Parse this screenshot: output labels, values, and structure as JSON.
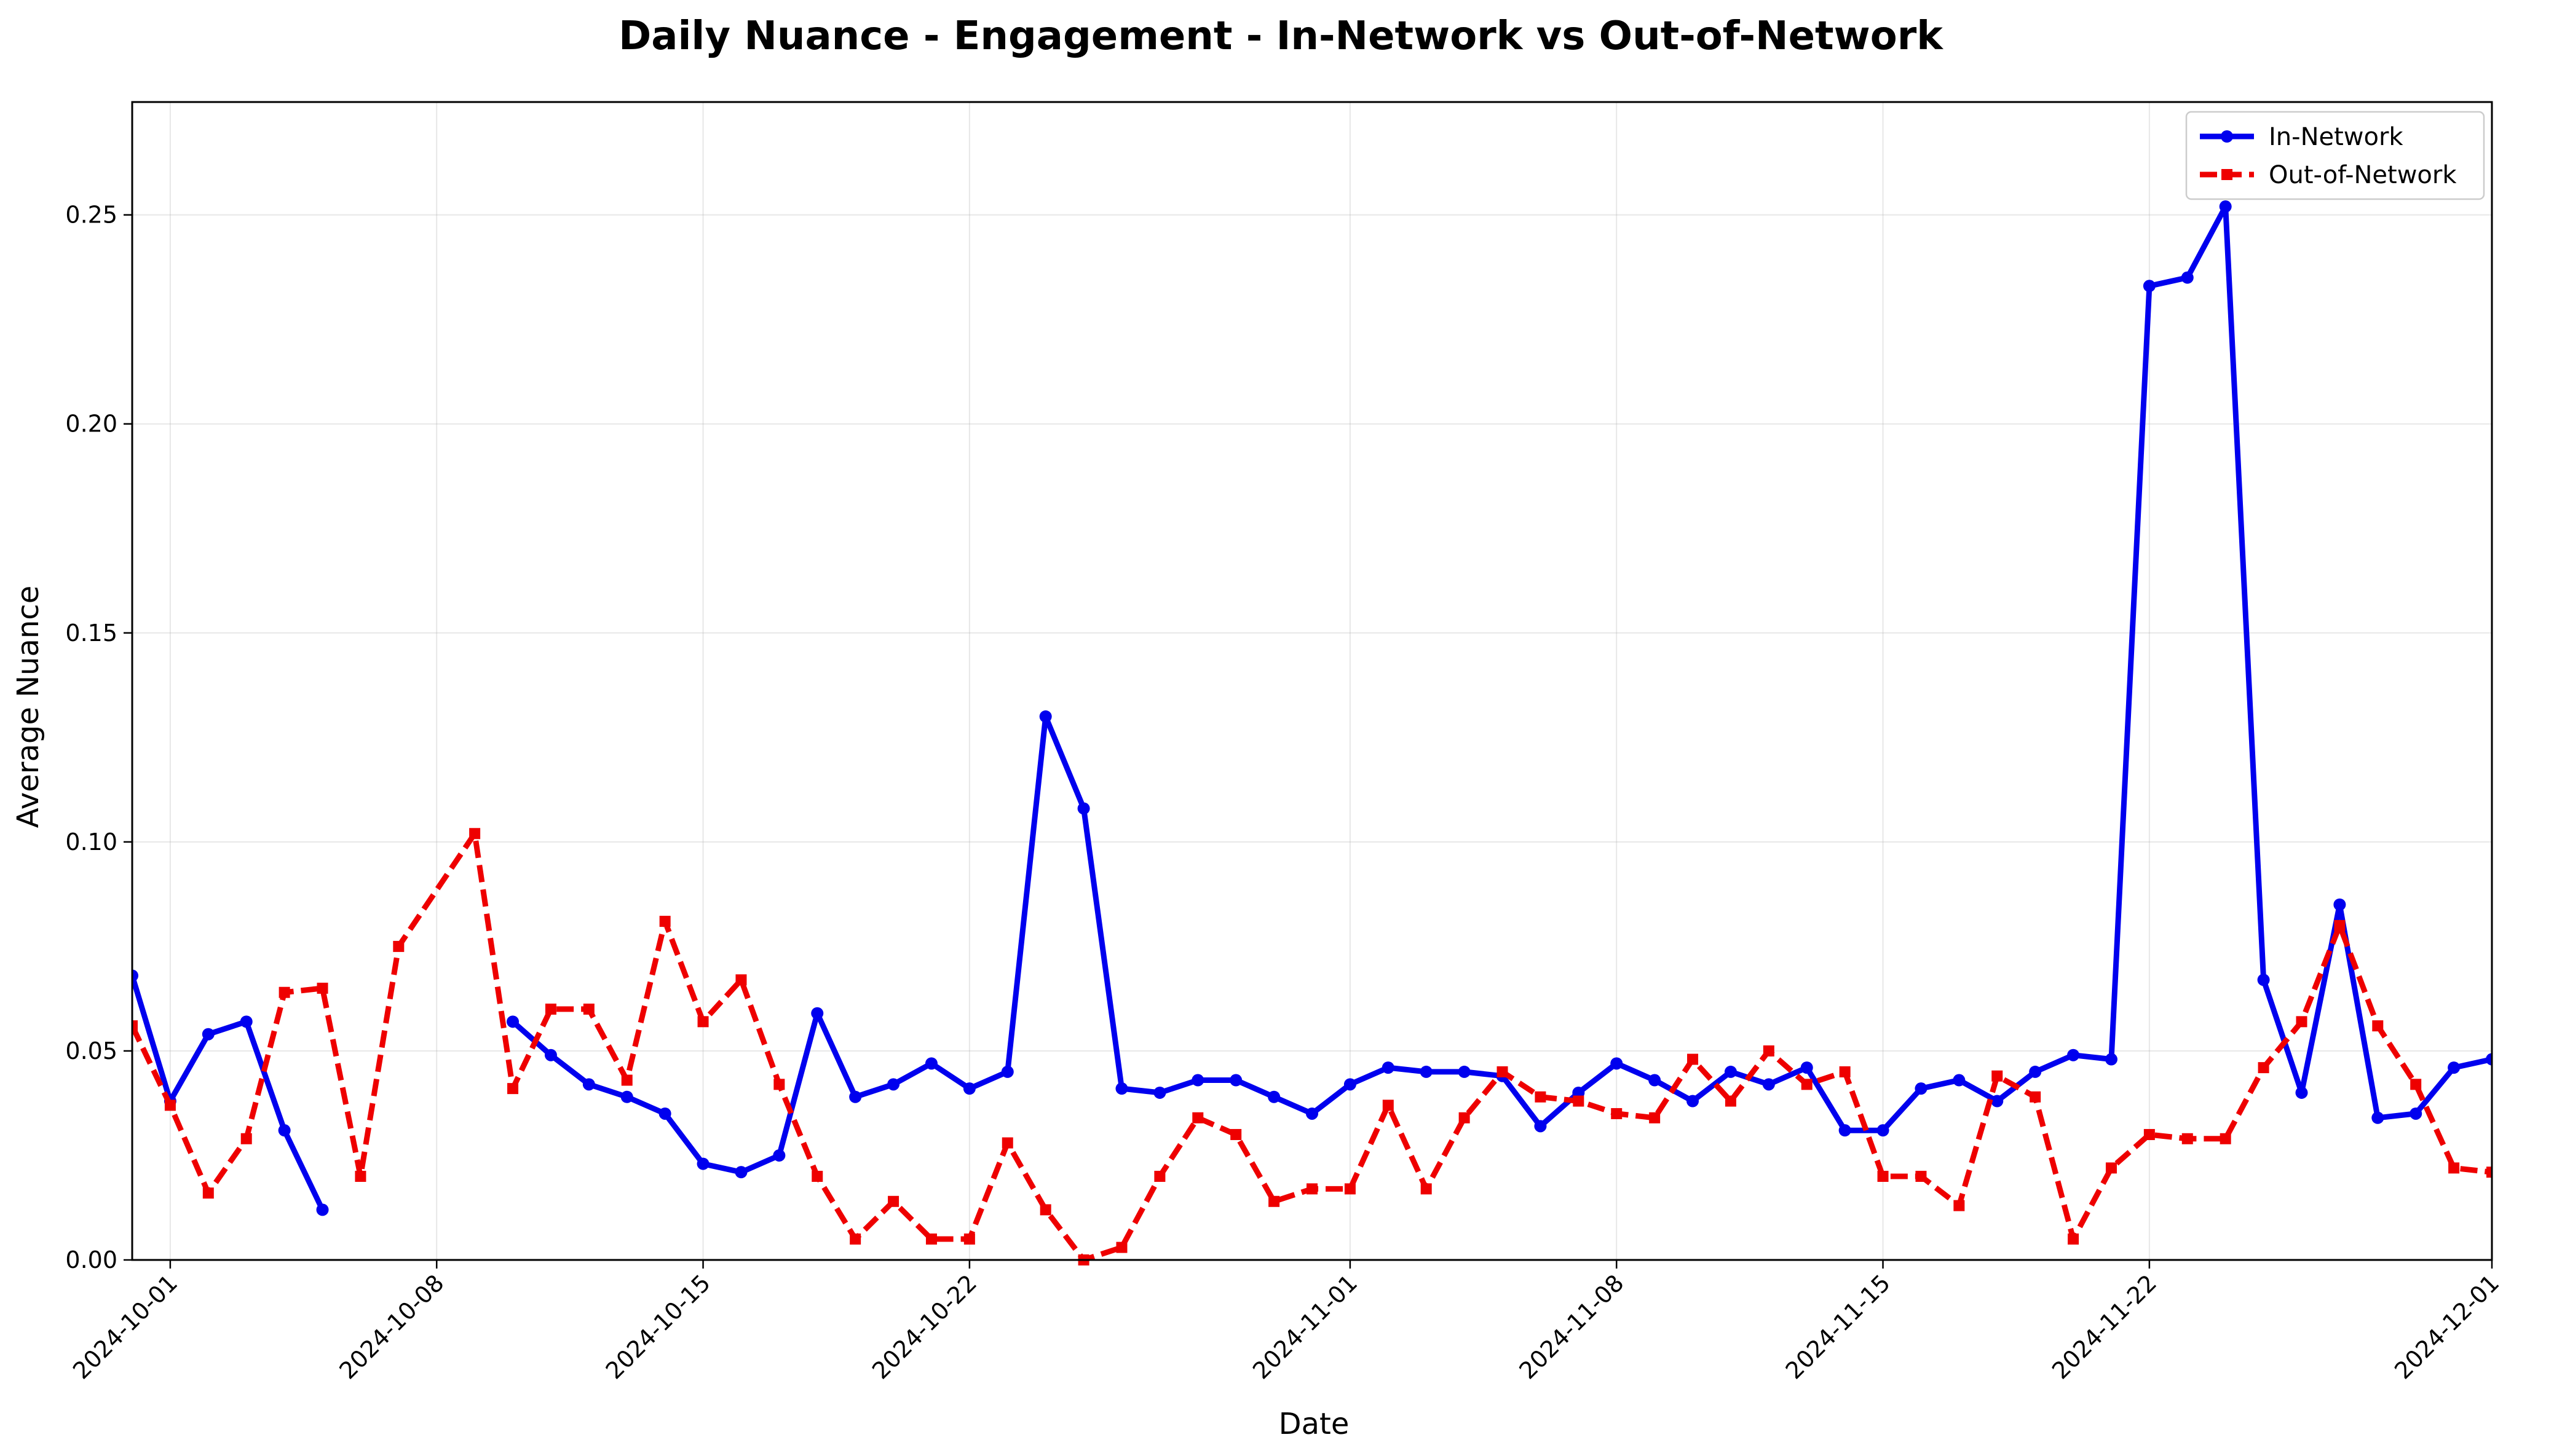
{
  "chart_data": {
    "type": "line",
    "title": "Daily Nuance - Engagement - In-Network vs Out-of-Network",
    "xlabel": "Date",
    "ylabel": "Average Nuance",
    "xlim": [
      "2024-09-30",
      "2024-12-01"
    ],
    "ylim": [
      0,
      0.277
    ],
    "x_ticks": [
      "2024-10-01",
      "2024-10-08",
      "2024-10-15",
      "2024-10-22",
      "2024-11-01",
      "2024-11-08",
      "2024-11-15",
      "2024-11-22",
      "2024-12-01"
    ],
    "y_ticks": [
      "0.00",
      "0.05",
      "0.10",
      "0.15",
      "0.20",
      "0.25"
    ],
    "grid": true,
    "legend_position": "top-right",
    "series": [
      {
        "name": "In-Network",
        "color": "#0000ee",
        "line_style": "solid",
        "marker": "circle",
        "points": [
          [
            "2024-09-30",
            0.068
          ],
          [
            "2024-10-01",
            0.038
          ],
          [
            "2024-10-02",
            0.054
          ],
          [
            "2024-10-03",
            0.057
          ],
          [
            "2024-10-04",
            0.031
          ],
          [
            "2024-10-05",
            0.012
          ],
          null,
          [
            "2024-10-10",
            0.057
          ],
          [
            "2024-10-11",
            0.049
          ],
          [
            "2024-10-12",
            0.042
          ],
          [
            "2024-10-13",
            0.039
          ],
          [
            "2024-10-14",
            0.035
          ],
          [
            "2024-10-15",
            0.023
          ],
          [
            "2024-10-16",
            0.021
          ],
          [
            "2024-10-17",
            0.025
          ],
          [
            "2024-10-18",
            0.059
          ],
          [
            "2024-10-19",
            0.039
          ],
          [
            "2024-10-20",
            0.042
          ],
          [
            "2024-10-21",
            0.047
          ],
          [
            "2024-10-22",
            0.041
          ],
          [
            "2024-10-23",
            0.045
          ],
          [
            "2024-10-24",
            0.13
          ],
          [
            "2024-10-25",
            0.108
          ],
          [
            "2024-10-26",
            0.041
          ],
          [
            "2024-10-27",
            0.04
          ],
          [
            "2024-10-28",
            0.043
          ],
          [
            "2024-10-29",
            0.043
          ],
          [
            "2024-10-30",
            0.039
          ],
          [
            "2024-10-31",
            0.035
          ],
          [
            "2024-11-01",
            0.042
          ],
          [
            "2024-11-02",
            0.046
          ],
          [
            "2024-11-03",
            0.045
          ],
          [
            "2024-11-04",
            0.045
          ],
          [
            "2024-11-05",
            0.044
          ],
          [
            "2024-11-06",
            0.032
          ],
          [
            "2024-11-07",
            0.04
          ],
          [
            "2024-11-08",
            0.047
          ],
          [
            "2024-11-09",
            0.043
          ],
          [
            "2024-11-10",
            0.038
          ],
          [
            "2024-11-11",
            0.045
          ],
          [
            "2024-11-12",
            0.042
          ],
          [
            "2024-11-13",
            0.046
          ],
          [
            "2024-11-14",
            0.031
          ],
          [
            "2024-11-15",
            0.031
          ],
          [
            "2024-11-16",
            0.041
          ],
          [
            "2024-11-17",
            0.043
          ],
          [
            "2024-11-18",
            0.038
          ],
          [
            "2024-11-19",
            0.045
          ],
          [
            "2024-11-20",
            0.049
          ],
          [
            "2024-11-21",
            0.048
          ],
          [
            "2024-11-22",
            0.233
          ],
          [
            "2024-11-23",
            0.235
          ],
          [
            "2024-11-24",
            0.252
          ],
          [
            "2024-11-25",
            0.067
          ],
          [
            "2024-11-26",
            0.04
          ],
          [
            "2024-11-27",
            0.085
          ],
          [
            "2024-11-28",
            0.034
          ],
          [
            "2024-11-29",
            0.035
          ],
          [
            "2024-11-30",
            0.046
          ],
          [
            "2024-12-01",
            0.048
          ]
        ]
      },
      {
        "name": "Out-of-Network",
        "color": "#ee0000",
        "line_style": "dashed",
        "marker": "square",
        "points": [
          [
            "2024-09-30",
            0.056
          ],
          [
            "2024-10-01",
            0.037
          ],
          [
            "2024-10-02",
            0.016
          ],
          [
            "2024-10-03",
            0.029
          ],
          [
            "2024-10-04",
            0.064
          ],
          [
            "2024-10-05",
            0.065
          ],
          [
            "2024-10-06",
            0.02
          ],
          [
            "2024-10-07",
            0.075
          ],
          [
            "2024-10-09",
            0.102
          ],
          [
            "2024-10-10",
            0.041
          ],
          [
            "2024-10-11",
            0.06
          ],
          [
            "2024-10-12",
            0.06
          ],
          [
            "2024-10-13",
            0.043
          ],
          [
            "2024-10-14",
            0.081
          ],
          [
            "2024-10-15",
            0.057
          ],
          [
            "2024-10-16",
            0.067
          ],
          [
            "2024-10-17",
            0.042
          ],
          [
            "2024-10-18",
            0.02
          ],
          [
            "2024-10-19",
            0.005
          ],
          [
            "2024-10-20",
            0.014
          ],
          [
            "2024-10-21",
            0.005
          ],
          [
            "2024-10-22",
            0.005
          ],
          [
            "2024-10-23",
            0.028
          ],
          [
            "2024-10-24",
            0.012
          ],
          [
            "2024-10-25",
            0.0
          ],
          [
            "2024-10-26",
            0.003
          ],
          [
            "2024-10-27",
            0.02
          ],
          [
            "2024-10-28",
            0.034
          ],
          [
            "2024-10-29",
            0.03
          ],
          [
            "2024-10-30",
            0.014
          ],
          [
            "2024-10-31",
            0.017
          ],
          [
            "2024-11-01",
            0.017
          ],
          [
            "2024-11-02",
            0.037
          ],
          [
            "2024-11-03",
            0.017
          ],
          [
            "2024-11-04",
            0.034
          ],
          [
            "2024-11-05",
            0.045
          ],
          [
            "2024-11-06",
            0.039
          ],
          [
            "2024-11-07",
            0.038
          ],
          [
            "2024-11-08",
            0.035
          ],
          [
            "2024-11-09",
            0.034
          ],
          [
            "2024-11-10",
            0.048
          ],
          [
            "2024-11-11",
            0.038
          ],
          [
            "2024-11-12",
            0.05
          ],
          [
            "2024-11-13",
            0.042
          ],
          [
            "2024-11-14",
            0.045
          ],
          [
            "2024-11-15",
            0.02
          ],
          [
            "2024-11-16",
            0.02
          ],
          [
            "2024-11-17",
            0.013
          ],
          [
            "2024-11-18",
            0.044
          ],
          [
            "2024-11-19",
            0.039
          ],
          [
            "2024-11-20",
            0.005
          ],
          [
            "2024-11-21",
            0.022
          ],
          [
            "2024-11-22",
            0.03
          ],
          [
            "2024-11-23",
            0.029
          ],
          [
            "2024-11-24",
            0.029
          ],
          [
            "2024-11-25",
            0.046
          ],
          [
            "2024-11-26",
            0.057
          ],
          [
            "2024-11-27",
            0.08
          ],
          [
            "2024-11-28",
            0.056
          ],
          [
            "2024-11-29",
            0.042
          ],
          [
            "2024-11-30",
            0.022
          ],
          [
            "2024-12-01",
            0.021
          ]
        ]
      }
    ]
  }
}
